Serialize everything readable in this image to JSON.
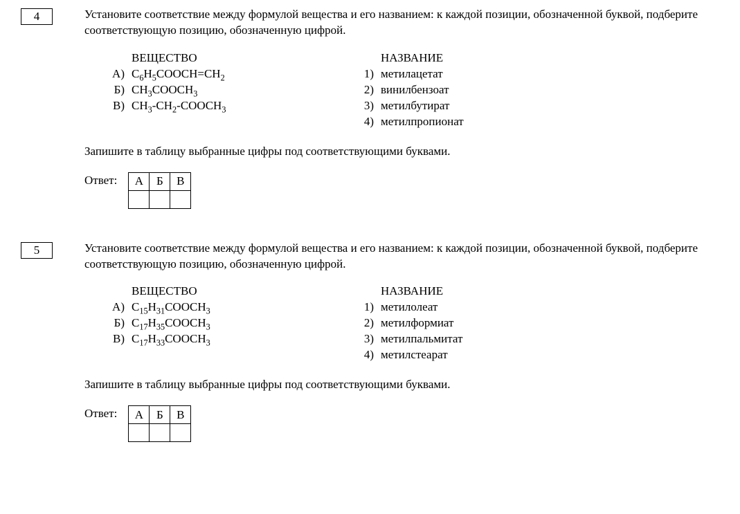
{
  "tasks": [
    {
      "number": "4",
      "prompt": "Установите соответствие между формулой вещества и его названием: к каждой позиции, обозначенной буквой, подберите соответствующую позицию, обозначенную цифрой.",
      "left_header": "ВЕЩЕСТВО",
      "right_header": "НАЗВАНИЕ",
      "left_items": [
        {
          "label": "А)",
          "formula_html": "C<sub>6</sub>H<sub>5</sub>COOCH=CH<sub>2</sub>"
        },
        {
          "label": "Б)",
          "formula_html": "CH<sub>3</sub>COOCH<sub>3</sub>"
        },
        {
          "label": "В)",
          "formula_html": "CH<sub>3</sub>-CH<sub>2</sub>-COOCH<sub>3</sub>"
        }
      ],
      "right_items": [
        {
          "label": "1)",
          "text": "метилацетат"
        },
        {
          "label": "2)",
          "text": "винилбензоат"
        },
        {
          "label": "3)",
          "text": "метилбутират"
        },
        {
          "label": "4)",
          "text": "метилпропионат"
        }
      ],
      "instruction": "Запишите в таблицу выбранные цифры под соответствующими буквами.",
      "answer_label": "Ответ:",
      "answer_headers": [
        "А",
        "Б",
        "В"
      ]
    },
    {
      "number": "5",
      "prompt": "Установите соответствие между формулой вещества и его названием: к каждой позиции, обозначенной буквой, подберите соответствующую позицию, обозначенную цифрой.",
      "left_header": "ВЕЩЕСТВО",
      "right_header": "НАЗВАНИЕ",
      "left_items": [
        {
          "label": "А)",
          "formula_html": "C<sub>15</sub>H<sub>31</sub>COOCH<sub>3</sub>"
        },
        {
          "label": "Б)",
          "formula_html": "C<sub>17</sub>H<sub>35</sub>COOCH<sub>3</sub>"
        },
        {
          "label": "В)",
          "formula_html": "C<sub>17</sub>H<sub>33</sub>COOCH<sub>3</sub>"
        }
      ],
      "right_items": [
        {
          "label": "1)",
          "text": "метилолеат"
        },
        {
          "label": "2)",
          "text": "метилформиат"
        },
        {
          "label": "3)",
          "text": "метилпальмитат"
        },
        {
          "label": "4)",
          "text": "метилстеарат"
        }
      ],
      "instruction": "Запишите в таблицу выбранные цифры под соответствующими буквами.",
      "answer_label": "Ответ:",
      "answer_headers": [
        "А",
        "Б",
        "В"
      ]
    }
  ]
}
